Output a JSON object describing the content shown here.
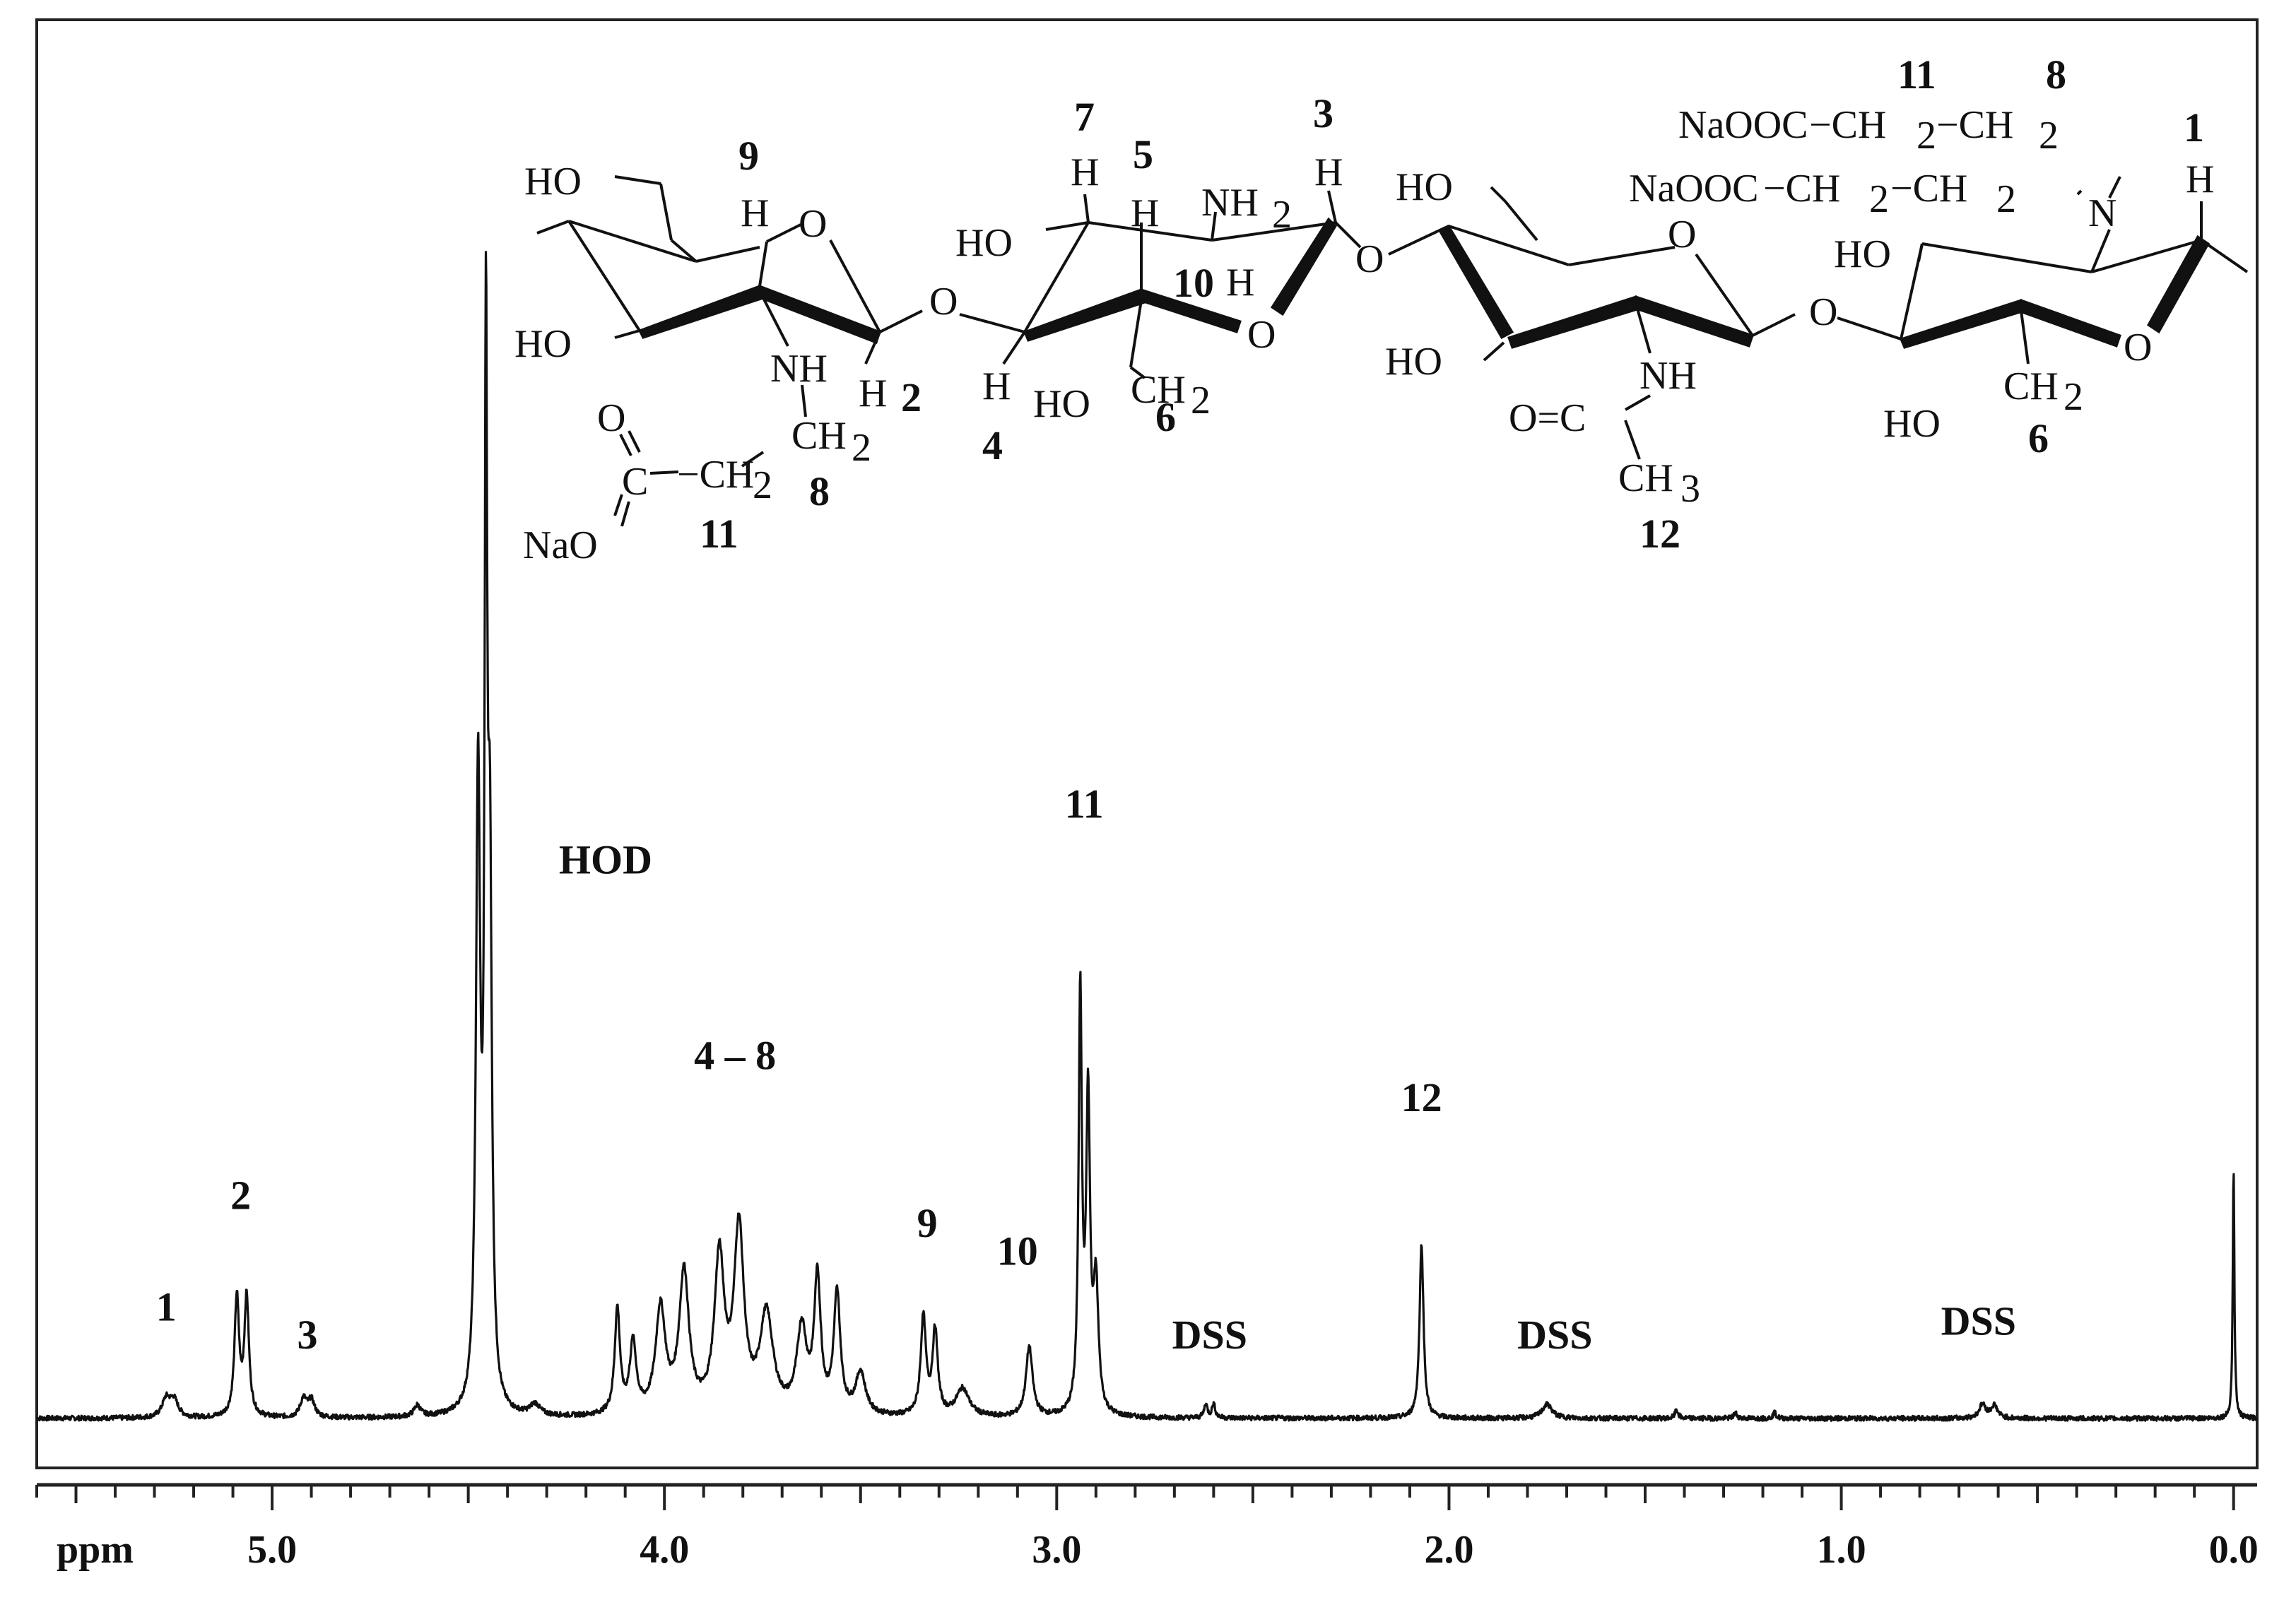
{
  "chart_data": {
    "type": "line",
    "title": "",
    "xlabel": "ppm",
    "ylabel": "",
    "xlim": [
      5.6,
      -0.06
    ],
    "x_reversed": true,
    "grid": false,
    "x_ticks": [
      "5.0",
      "4.0",
      "3.0",
      "2.0",
      "1.0",
      "0.0"
    ],
    "x_tick_values": [
      5.0,
      4.0,
      3.0,
      2.0,
      1.0,
      0.0
    ],
    "series": [
      {
        "peaks": [
          {
            "ppm": 5.27,
            "height": 0.013,
            "width": 0.025
          },
          {
            "ppm": 5.25,
            "height": 0.012,
            "width": 0.025
          },
          {
            "ppm": 5.09,
            "height": 0.085,
            "width": 0.014
          },
          {
            "ppm": 5.065,
            "height": 0.085,
            "width": 0.014
          },
          {
            "ppm": 4.92,
            "height": 0.013,
            "width": 0.02
          },
          {
            "ppm": 4.9,
            "height": 0.012,
            "width": 0.02
          },
          {
            "ppm": 4.63,
            "height": 0.008,
            "width": 0.02
          },
          {
            "ppm": 4.475,
            "height": 0.45,
            "width": 0.013
          },
          {
            "ppm": 4.455,
            "height": 0.7,
            "width": 0.008
          },
          {
            "ppm": 4.445,
            "height": 0.36,
            "width": 0.012
          },
          {
            "ppm": 4.33,
            "height": 0.008,
            "width": 0.03
          },
          {
            "ppm": 4.12,
            "height": 0.075,
            "width": 0.016
          },
          {
            "ppm": 4.08,
            "height": 0.05,
            "width": 0.02
          },
          {
            "ppm": 4.01,
            "height": 0.075,
            "width": 0.03
          },
          {
            "ppm": 3.95,
            "height": 0.1,
            "width": 0.03
          },
          {
            "ppm": 3.86,
            "height": 0.11,
            "width": 0.03
          },
          {
            "ppm": 3.81,
            "height": 0.13,
            "width": 0.03
          },
          {
            "ppm": 3.74,
            "height": 0.07,
            "width": 0.04
          },
          {
            "ppm": 3.65,
            "height": 0.06,
            "width": 0.03
          },
          {
            "ppm": 3.61,
            "height": 0.095,
            "width": 0.02
          },
          {
            "ppm": 3.56,
            "height": 0.085,
            "width": 0.02
          },
          {
            "ppm": 3.5,
            "height": 0.03,
            "width": 0.03
          },
          {
            "ppm": 3.34,
            "height": 0.07,
            "width": 0.016
          },
          {
            "ppm": 3.31,
            "height": 0.06,
            "width": 0.016
          },
          {
            "ppm": 3.24,
            "height": 0.02,
            "width": 0.04
          },
          {
            "ppm": 3.07,
            "height": 0.05,
            "width": 0.02
          },
          {
            "ppm": 2.94,
            "height": 0.3,
            "width": 0.01
          },
          {
            "ppm": 2.92,
            "height": 0.22,
            "width": 0.012
          },
          {
            "ppm": 2.9,
            "height": 0.09,
            "width": 0.015
          },
          {
            "ppm": 2.62,
            "height": 0.01,
            "width": 0.01
          },
          {
            "ppm": 2.6,
            "height": 0.01,
            "width": 0.01
          },
          {
            "ppm": 2.07,
            "height": 0.125,
            "width": 0.012
          },
          {
            "ppm": 1.75,
            "height": 0.01,
            "width": 0.03
          },
          {
            "ppm": 1.42,
            "height": 0.006,
            "width": 0.01
          },
          {
            "ppm": 1.27,
            "height": 0.004,
            "width": 0.01
          },
          {
            "ppm": 1.17,
            "height": 0.004,
            "width": 0.01
          },
          {
            "ppm": 0.64,
            "height": 0.01,
            "width": 0.02
          },
          {
            "ppm": 0.61,
            "height": 0.009,
            "width": 0.02
          },
          {
            "ppm": 0.0,
            "height": 0.18,
            "width": 0.005
          }
        ]
      }
    ],
    "annotations": [
      {
        "text": "1",
        "ppm": 5.27,
        "level": 0.07
      },
      {
        "text": "2",
        "ppm": 5.08,
        "level": 0.15
      },
      {
        "text": "3",
        "ppm": 4.91,
        "level": 0.05
      },
      {
        "text": "HOD",
        "ppm": 4.15,
        "level": 0.39
      },
      {
        "text": "4 – 8",
        "ppm": 3.82,
        "level": 0.25
      },
      {
        "text": "9",
        "ppm": 3.33,
        "level": 0.13
      },
      {
        "text": "10",
        "ppm": 3.1,
        "level": 0.11
      },
      {
        "text": "11",
        "ppm": 2.93,
        "level": 0.43
      },
      {
        "text": "DSS",
        "ppm": 2.61,
        "level": 0.05
      },
      {
        "text": "12",
        "ppm": 2.07,
        "level": 0.22
      },
      {
        "text": "DSS",
        "ppm": 1.73,
        "level": 0.05
      },
      {
        "text": "DSS",
        "ppm": 0.65,
        "level": 0.06
      }
    ]
  },
  "structure": {
    "labels": {
      "n1": "1",
      "n2": "2",
      "n3": "3",
      "n4": "4",
      "n5": "5",
      "n6a": "6",
      "n6b": "6",
      "n7": "7",
      "n8a": "8",
      "n8b": "8",
      "n9": "9",
      "n10": "10",
      "n11a": "11",
      "n11b": "11",
      "n12": "12"
    },
    "groups": {
      "ho": "HO",
      "o": "O",
      "h": "H",
      "nh": "NH",
      "nh2": "NH",
      "n": "N",
      "ch2": "CH",
      "ch3": "CH",
      "sub2": "2",
      "sub3": "3",
      "nao": "NaO",
      "c": "C",
      "ho6": "HO",
      "o_eq": "O=C",
      "naooc": "NaOOC",
      "dash_ch2": "−CH",
      "dash": "−"
    }
  }
}
